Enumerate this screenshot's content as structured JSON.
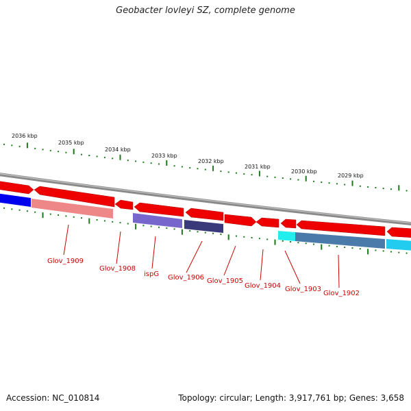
{
  "title": "Geobacter lovleyi SZ, complete genome",
  "footer": {
    "accession": "Accession: NC_010814",
    "summary": "Topology: circular; Length: 3,917,761 bp; Genes: 3,658"
  },
  "colors": {
    "backbone": "#888888",
    "tick": "#1a7a1a",
    "label": "#cc0000",
    "forward_gene": "#ee0000",
    "glov_1909": "#ee8888",
    "ispG": "#7766cc",
    "glov_1906": "#3a3a7a",
    "glov_1903": "#4a7aaa",
    "left_blue": "#0000ee",
    "cyan": "#22ccee"
  },
  "kbp_labels": [
    "2036 kbp",
    "2035 kbp",
    "2034 kbp",
    "2033 kbp",
    "2032 kbp",
    "2031 kbp",
    "2030 kbp",
    "2029 kbp"
  ],
  "gene_labels": [
    "Glov_1909",
    "Glov_1908",
    "ispG",
    "Glov_1906",
    "Glov_1905",
    "Glov_1904",
    "Glov_1903",
    "Glov_1902"
  ]
}
